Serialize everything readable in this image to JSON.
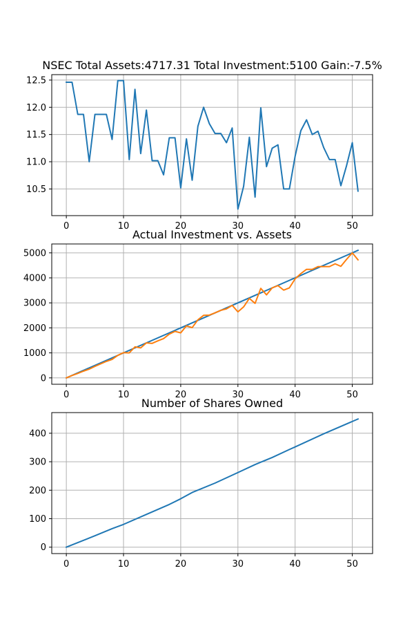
{
  "chart_data": [
    {
      "type": "line",
      "title": "NSEC Total Assets:4717.31  Total Investment:5100  Gain:-7.5%",
      "xlim": [
        -2.55,
        53.55
      ],
      "ylim": [
        10.01,
        12.6
      ],
      "xticks": [
        0,
        10,
        20,
        30,
        40,
        50
      ],
      "yticks": [
        10.5,
        11.0,
        11.5,
        12.0,
        12.5
      ],
      "ytick_labels": [
        "10.5",
        "11.0",
        "11.5",
        "12.0",
        "12.5"
      ],
      "grid": true,
      "series": [
        {
          "color": "#1f77b4",
          "x": [
            0,
            1,
            2,
            3,
            4,
            5,
            6,
            7,
            8,
            9,
            10,
            11,
            12,
            13,
            14,
            15,
            16,
            17,
            18,
            19,
            20,
            21,
            22,
            23,
            24,
            25,
            26,
            27,
            28,
            29,
            30,
            31,
            32,
            33,
            34,
            35,
            36,
            37,
            38,
            39,
            40,
            41,
            42,
            43,
            44,
            45,
            46,
            47,
            48,
            49,
            50,
            51
          ],
          "y": [
            12.46,
            12.46,
            11.87,
            11.87,
            11.0,
            11.87,
            11.87,
            11.87,
            11.41,
            12.49,
            12.49,
            11.04,
            12.33,
            11.15,
            11.95,
            11.02,
            11.02,
            10.76,
            11.44,
            11.44,
            10.52,
            11.42,
            10.66,
            11.65,
            12.0,
            11.7,
            11.52,
            11.52,
            11.35,
            11.62,
            10.13,
            10.55,
            11.45,
            10.35,
            11.99,
            10.91,
            11.25,
            11.31,
            10.5,
            10.5,
            11.1,
            11.57,
            11.77,
            11.5,
            11.56,
            11.26,
            11.04,
            11.04,
            10.56,
            10.93,
            11.35,
            10.46
          ]
        }
      ]
    },
    {
      "type": "line",
      "title": "Actual Investment vs. Assets",
      "xlim": [
        -2.55,
        53.55
      ],
      "ylim": [
        -255,
        5355
      ],
      "xticks": [
        0,
        10,
        20,
        30,
        40,
        50
      ],
      "yticks": [
        0,
        1000,
        2000,
        3000,
        4000,
        5000
      ],
      "ytick_labels": [
        "0",
        "1000",
        "2000",
        "3000",
        "4000",
        "5000"
      ],
      "grid": true,
      "series": [
        {
          "color": "#1f77b4",
          "x": [
            0,
            51
          ],
          "y": [
            0,
            5100
          ]
        },
        {
          "color": "#ff7f0e",
          "x": [
            0,
            1,
            2,
            3,
            4,
            5,
            6,
            7,
            8,
            9,
            10,
            11,
            12,
            13,
            14,
            15,
            16,
            17,
            18,
            19,
            20,
            21,
            22,
            23,
            24,
            25,
            26,
            27,
            28,
            29,
            30,
            31,
            32,
            33,
            34,
            35,
            36,
            37,
            38,
            39,
            40,
            41,
            42,
            43,
            44,
            45,
            46,
            47,
            48,
            49,
            50,
            51
          ],
          "y": [
            0,
            95,
            180,
            270,
            350,
            460,
            560,
            660,
            740,
            900,
            1010,
            1000,
            1240,
            1200,
            1400,
            1380,
            1480,
            1570,
            1750,
            1860,
            1800,
            2080,
            2010,
            2320,
            2500,
            2510,
            2600,
            2700,
            2760,
            2900,
            2640,
            2840,
            3180,
            2980,
            3580,
            3320,
            3600,
            3690,
            3510,
            3600,
            3960,
            4170,
            4340,
            4340,
            4450,
            4450,
            4450,
            4560,
            4460,
            4740,
            5000,
            4720
          ]
        }
      ]
    },
    {
      "type": "line",
      "title": "Number of Shares Owned",
      "xlim": [
        -2.55,
        53.55
      ],
      "ylim": [
        -22.5,
        472.5
      ],
      "xticks": [
        0,
        10,
        20,
        30,
        40,
        50
      ],
      "yticks": [
        0,
        100,
        200,
        300,
        400
      ],
      "ytick_labels": [
        "0",
        "100",
        "200",
        "300",
        "400"
      ],
      "grid": true,
      "series": [
        {
          "color": "#1f77b4",
          "x": [
            0,
            5,
            8,
            10,
            14,
            18,
            20,
            22,
            26,
            30,
            33,
            36,
            39,
            40,
            45,
            51
          ],
          "y": [
            0,
            40,
            65,
            80,
            115,
            150,
            170,
            192,
            225,
            262,
            290,
            315,
            343,
            352,
            398,
            450
          ]
        }
      ]
    }
  ]
}
